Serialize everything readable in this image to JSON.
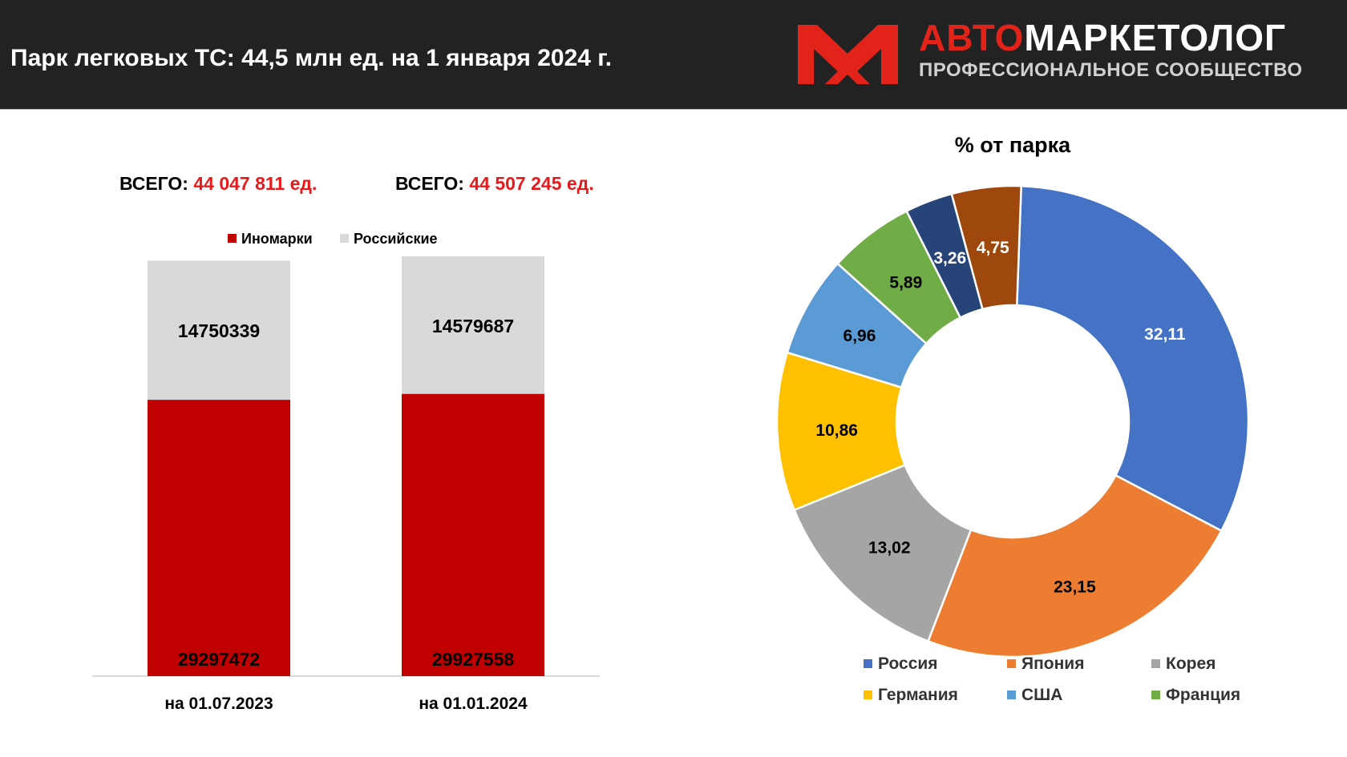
{
  "header": {
    "title": "Парк легковых ТС: 44,5 млн ед.  на 1 января 2024 г.",
    "logo_primary_a": "АВТО",
    "logo_primary_b": "МАРКЕТОЛОГ",
    "logo_secondary": "ПРОФЕССИОНАЛЬНОЕ СООБЩЕСТВО"
  },
  "colors": {
    "header_bg": "#222222",
    "accent_red": "#e2231a",
    "inomarki": "#c00000",
    "rossiyskie": "#d9d9d9"
  },
  "totals": [
    {
      "label": "ВСЕГО:",
      "value": "44 047 811 ед."
    },
    {
      "label": "ВСЕГО:",
      "value": "44 507 245 ед."
    }
  ],
  "chart_data": [
    {
      "type": "bar",
      "stacked": true,
      "categories": [
        "на 01.07.2023",
        "на 01.01.2024"
      ],
      "series": [
        {
          "name": "Иномарки",
          "color": "#c00000",
          "values": [
            29297472,
            29927558
          ]
        },
        {
          "name": "Российские",
          "color": "#d9d9d9",
          "values": [
            14750339,
            14579687
          ]
        }
      ],
      "legend": "top-center",
      "ylim": [
        0,
        44507245
      ]
    },
    {
      "type": "pie",
      "donut": true,
      "title": "% от парка",
      "legend": "bottom",
      "slices": [
        {
          "name": "Россия",
          "value": 32.11,
          "label": "32,11",
          "color": "#4472c4",
          "legend": true
        },
        {
          "name": "Япония",
          "value": 23.15,
          "label": "23,15",
          "color": "#ed7d31",
          "legend": true
        },
        {
          "name": "Корея",
          "value": 13.02,
          "label": "13,02",
          "color": "#a5a5a5",
          "legend": true
        },
        {
          "name": "Германия",
          "value": 10.86,
          "label": "10,86",
          "color": "#ffc000",
          "legend": true
        },
        {
          "name": "США",
          "value": 6.96,
          "label": "6,96",
          "color": "#5b9bd5",
          "legend": true
        },
        {
          "name": "Франция",
          "value": 5.89,
          "label": "5,89",
          "color": "#70ad47",
          "legend": true
        },
        {
          "name": "",
          "value": 3.26,
          "label": "3,26",
          "color": "#264478",
          "legend": false
        },
        {
          "name": "",
          "value": 4.75,
          "label": "4,75",
          "color": "#9e480e",
          "legend": false
        }
      ]
    }
  ]
}
